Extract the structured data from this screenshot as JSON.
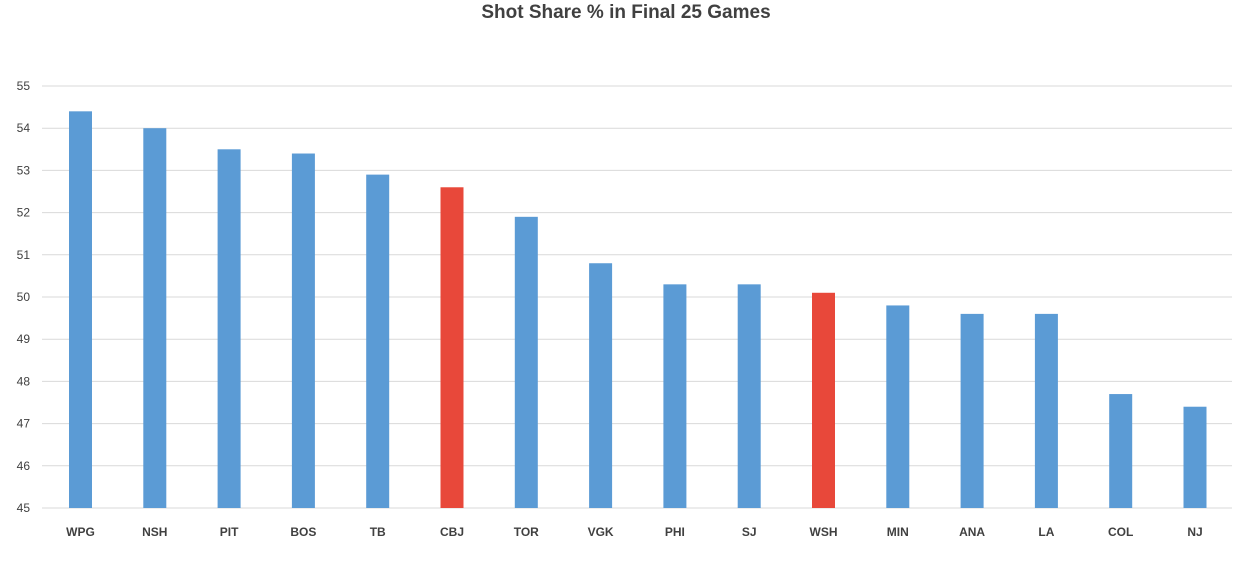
{
  "chart_data": {
    "type": "bar",
    "title": "Shot Share % in Final 25 Games",
    "xlabel": "",
    "ylabel": "",
    "ylim": [
      45,
      55
    ],
    "yticks": [
      45,
      46,
      47,
      48,
      49,
      50,
      51,
      52,
      53,
      54,
      55
    ],
    "grid": true,
    "legend": "none",
    "categories": [
      "WPG",
      "NSH",
      "PIT",
      "BOS",
      "TB",
      "CBJ",
      "TOR",
      "VGK",
      "PHI",
      "SJ",
      "WSH",
      "MIN",
      "ANA",
      "LA",
      "COL",
      "NJ"
    ],
    "values": [
      54.4,
      54.0,
      53.5,
      53.4,
      52.9,
      52.6,
      51.9,
      50.8,
      50.3,
      50.3,
      50.1,
      49.8,
      49.6,
      49.6,
      47.7,
      47.4
    ],
    "highlighted": [
      "CBJ",
      "WSH"
    ],
    "colors": {
      "default_bar": "#5b9bd5",
      "highlight_bar": "#e8483a",
      "grid": "#d9d9d9",
      "tick_text": "#404040",
      "title_text": "#404040"
    }
  }
}
